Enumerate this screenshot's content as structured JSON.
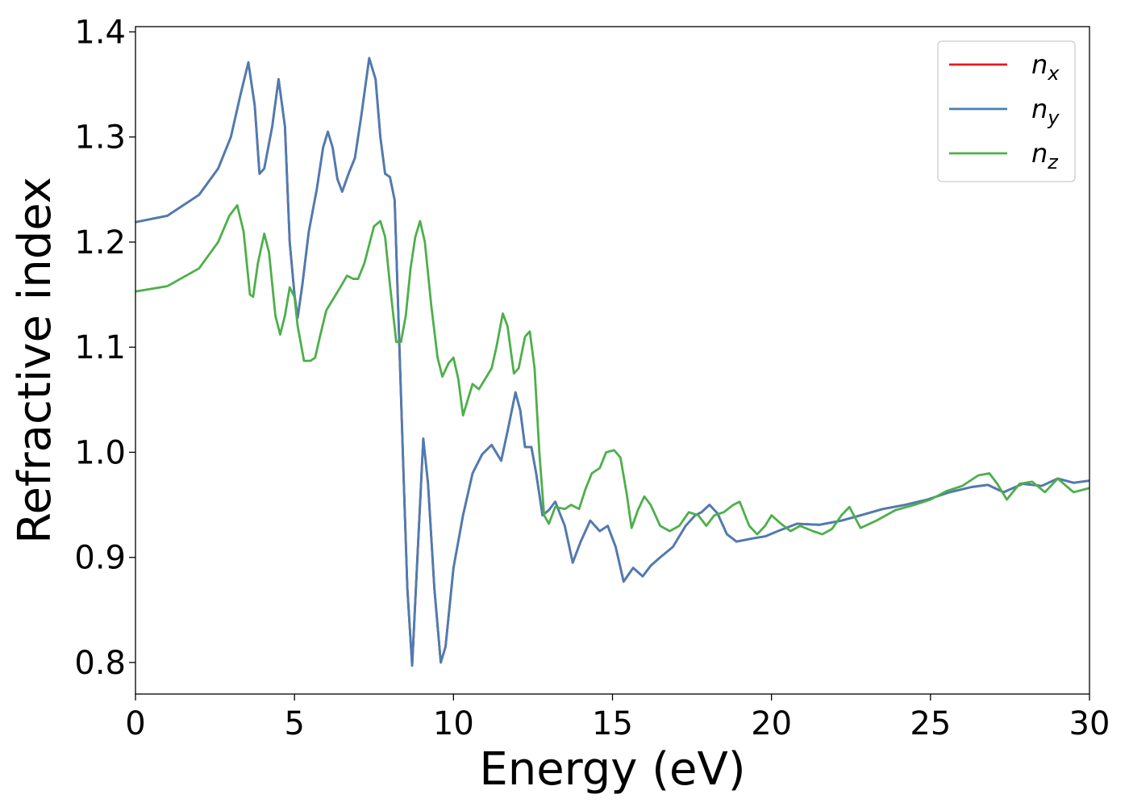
{
  "chart_data": {
    "type": "line",
    "title": "",
    "xlabel": "Energy (eV)",
    "ylabel": "Refractive index",
    "xlim": [
      0,
      30
    ],
    "ylim": [
      0.77,
      1.405
    ],
    "xticks": [
      0,
      5,
      10,
      15,
      20,
      25,
      30
    ],
    "xtick_labels": [
      "0",
      "5",
      "10",
      "15",
      "20",
      "25",
      "30"
    ],
    "yticks": [
      0.8,
      0.9,
      1.0,
      1.1,
      1.2,
      1.3,
      1.4
    ],
    "ytick_labels": [
      "0.8",
      "0.9",
      "1.0",
      "1.1",
      "1.2",
      "1.3",
      "1.4"
    ],
    "grid": false,
    "legend_position": "top-right",
    "series": [
      {
        "name": "n_x",
        "label_base": "n",
        "label_sub": "x",
        "color": "#e41a1c",
        "points": [
          [
            0,
            1.219
          ],
          [
            1,
            1.225
          ],
          [
            2,
            1.245
          ],
          [
            2.6,
            1.27
          ],
          [
            3,
            1.3
          ],
          [
            3.3,
            1.34
          ],
          [
            3.55,
            1.371
          ],
          [
            3.75,
            1.33
          ],
          [
            3.9,
            1.265
          ],
          [
            4.05,
            1.27
          ],
          [
            4.3,
            1.31
          ],
          [
            4.5,
            1.355
          ],
          [
            4.7,
            1.31
          ],
          [
            4.85,
            1.2
          ],
          [
            5.0,
            1.15
          ],
          [
            5.1,
            1.128
          ],
          [
            5.25,
            1.16
          ],
          [
            5.45,
            1.21
          ],
          [
            5.7,
            1.25
          ],
          [
            5.9,
            1.29
          ],
          [
            6.05,
            1.305
          ],
          [
            6.2,
            1.29
          ],
          [
            6.35,
            1.26
          ],
          [
            6.5,
            1.248
          ],
          [
            6.7,
            1.265
          ],
          [
            6.9,
            1.28
          ],
          [
            7.1,
            1.32
          ],
          [
            7.35,
            1.375
          ],
          [
            7.55,
            1.355
          ],
          [
            7.7,
            1.3
          ],
          [
            7.85,
            1.265
          ],
          [
            8.0,
            1.262
          ],
          [
            8.15,
            1.24
          ],
          [
            8.3,
            1.1
          ],
          [
            8.45,
            0.96
          ],
          [
            8.55,
            0.87
          ],
          [
            8.7,
            0.797
          ],
          [
            8.85,
            0.89
          ],
          [
            9.05,
            1.013
          ],
          [
            9.2,
            0.97
          ],
          [
            9.4,
            0.87
          ],
          [
            9.6,
            0.8
          ],
          [
            9.75,
            0.815
          ],
          [
            10.0,
            0.89
          ],
          [
            10.3,
            0.94
          ],
          [
            10.6,
            0.98
          ],
          [
            10.9,
            0.998
          ],
          [
            11.2,
            1.007
          ],
          [
            11.5,
            0.992
          ],
          [
            11.7,
            1.02
          ],
          [
            11.95,
            1.057
          ],
          [
            12.1,
            1.04
          ],
          [
            12.25,
            1.005
          ],
          [
            12.45,
            1.005
          ],
          [
            12.6,
            0.98
          ],
          [
            12.8,
            0.94
          ],
          [
            13.0,
            0.945
          ],
          [
            13.2,
            0.953
          ],
          [
            13.5,
            0.93
          ],
          [
            13.75,
            0.895
          ],
          [
            14.0,
            0.915
          ],
          [
            14.3,
            0.935
          ],
          [
            14.6,
            0.925
          ],
          [
            14.85,
            0.93
          ],
          [
            15.1,
            0.91
          ],
          [
            15.35,
            0.877
          ],
          [
            15.65,
            0.89
          ],
          [
            15.95,
            0.882
          ],
          [
            16.2,
            0.892
          ],
          [
            16.5,
            0.9
          ],
          [
            16.9,
            0.91
          ],
          [
            17.3,
            0.93
          ],
          [
            17.6,
            0.94
          ],
          [
            17.8,
            0.943
          ],
          [
            18.05,
            0.95
          ],
          [
            18.3,
            0.942
          ],
          [
            18.6,
            0.922
          ],
          [
            18.9,
            0.915
          ],
          [
            19.4,
            0.918
          ],
          [
            19.8,
            0.92
          ],
          [
            20.2,
            0.925
          ],
          [
            20.8,
            0.932
          ],
          [
            21.5,
            0.931
          ],
          [
            22.2,
            0.935
          ],
          [
            22.8,
            0.94
          ],
          [
            23.5,
            0.946
          ],
          [
            24.2,
            0.95
          ],
          [
            24.9,
            0.955
          ],
          [
            25.6,
            0.962
          ],
          [
            26.3,
            0.967
          ],
          [
            26.8,
            0.969
          ],
          [
            27.3,
            0.962
          ],
          [
            27.9,
            0.97
          ],
          [
            28.5,
            0.968
          ],
          [
            29.0,
            0.975
          ],
          [
            29.5,
            0.971
          ],
          [
            30,
            0.973
          ]
        ]
      },
      {
        "name": "n_y",
        "label_base": "n",
        "label_sub": "y",
        "color": "#4a7db4",
        "points": [
          [
            0,
            1.219
          ],
          [
            1,
            1.225
          ],
          [
            2,
            1.245
          ],
          [
            2.6,
            1.27
          ],
          [
            3,
            1.3
          ],
          [
            3.3,
            1.34
          ],
          [
            3.55,
            1.371
          ],
          [
            3.75,
            1.33
          ],
          [
            3.9,
            1.265
          ],
          [
            4.05,
            1.27
          ],
          [
            4.3,
            1.31
          ],
          [
            4.5,
            1.355
          ],
          [
            4.7,
            1.31
          ],
          [
            4.85,
            1.2
          ],
          [
            5.0,
            1.15
          ],
          [
            5.1,
            1.128
          ],
          [
            5.25,
            1.16
          ],
          [
            5.45,
            1.21
          ],
          [
            5.7,
            1.25
          ],
          [
            5.9,
            1.29
          ],
          [
            6.05,
            1.305
          ],
          [
            6.2,
            1.29
          ],
          [
            6.35,
            1.26
          ],
          [
            6.5,
            1.248
          ],
          [
            6.7,
            1.265
          ],
          [
            6.9,
            1.28
          ],
          [
            7.1,
            1.32
          ],
          [
            7.35,
            1.375
          ],
          [
            7.55,
            1.355
          ],
          [
            7.7,
            1.3
          ],
          [
            7.85,
            1.265
          ],
          [
            8.0,
            1.262
          ],
          [
            8.15,
            1.24
          ],
          [
            8.3,
            1.1
          ],
          [
            8.45,
            0.96
          ],
          [
            8.55,
            0.87
          ],
          [
            8.7,
            0.797
          ],
          [
            8.85,
            0.89
          ],
          [
            9.05,
            1.013
          ],
          [
            9.2,
            0.97
          ],
          [
            9.4,
            0.87
          ],
          [
            9.6,
            0.8
          ],
          [
            9.75,
            0.815
          ],
          [
            10.0,
            0.89
          ],
          [
            10.3,
            0.94
          ],
          [
            10.6,
            0.98
          ],
          [
            10.9,
            0.998
          ],
          [
            11.2,
            1.007
          ],
          [
            11.5,
            0.992
          ],
          [
            11.7,
            1.02
          ],
          [
            11.95,
            1.057
          ],
          [
            12.1,
            1.04
          ],
          [
            12.25,
            1.005
          ],
          [
            12.45,
            1.005
          ],
          [
            12.6,
            0.98
          ],
          [
            12.8,
            0.94
          ],
          [
            13.0,
            0.945
          ],
          [
            13.2,
            0.953
          ],
          [
            13.5,
            0.93
          ],
          [
            13.75,
            0.895
          ],
          [
            14.0,
            0.915
          ],
          [
            14.3,
            0.935
          ],
          [
            14.6,
            0.925
          ],
          [
            14.85,
            0.93
          ],
          [
            15.1,
            0.91
          ],
          [
            15.35,
            0.877
          ],
          [
            15.65,
            0.89
          ],
          [
            15.95,
            0.882
          ],
          [
            16.2,
            0.892
          ],
          [
            16.5,
            0.9
          ],
          [
            16.9,
            0.91
          ],
          [
            17.3,
            0.93
          ],
          [
            17.6,
            0.94
          ],
          [
            17.8,
            0.943
          ],
          [
            18.05,
            0.95
          ],
          [
            18.3,
            0.942
          ],
          [
            18.6,
            0.922
          ],
          [
            18.9,
            0.915
          ],
          [
            19.4,
            0.918
          ],
          [
            19.8,
            0.92
          ],
          [
            20.2,
            0.925
          ],
          [
            20.8,
            0.932
          ],
          [
            21.5,
            0.931
          ],
          [
            22.2,
            0.935
          ],
          [
            22.8,
            0.94
          ],
          [
            23.5,
            0.946
          ],
          [
            24.2,
            0.95
          ],
          [
            24.9,
            0.955
          ],
          [
            25.6,
            0.962
          ],
          [
            26.3,
            0.967
          ],
          [
            26.8,
            0.969
          ],
          [
            27.3,
            0.962
          ],
          [
            27.9,
            0.97
          ],
          [
            28.5,
            0.968
          ],
          [
            29.0,
            0.975
          ],
          [
            29.5,
            0.971
          ],
          [
            30,
            0.973
          ]
        ]
      },
      {
        "name": "n_z",
        "label_base": "n",
        "label_sub": "z",
        "color": "#4daf4a",
        "points": [
          [
            0,
            1.153
          ],
          [
            1,
            1.158
          ],
          [
            2,
            1.175
          ],
          [
            2.6,
            1.2
          ],
          [
            2.95,
            1.225
          ],
          [
            3.2,
            1.235
          ],
          [
            3.4,
            1.21
          ],
          [
            3.6,
            1.15
          ],
          [
            3.7,
            1.148
          ],
          [
            3.85,
            1.18
          ],
          [
            4.05,
            1.208
          ],
          [
            4.2,
            1.19
          ],
          [
            4.4,
            1.13
          ],
          [
            4.55,
            1.112
          ],
          [
            4.7,
            1.13
          ],
          [
            4.85,
            1.157
          ],
          [
            5.0,
            1.148
          ],
          [
            5.1,
            1.12
          ],
          [
            5.3,
            1.087
          ],
          [
            5.5,
            1.087
          ],
          [
            5.65,
            1.09
          ],
          [
            5.8,
            1.11
          ],
          [
            6.0,
            1.135
          ],
          [
            6.3,
            1.15
          ],
          [
            6.5,
            1.16
          ],
          [
            6.65,
            1.168
          ],
          [
            6.85,
            1.165
          ],
          [
            7.0,
            1.165
          ],
          [
            7.2,
            1.18
          ],
          [
            7.5,
            1.215
          ],
          [
            7.7,
            1.22
          ],
          [
            7.85,
            1.205
          ],
          [
            8.0,
            1.16
          ],
          [
            8.2,
            1.105
          ],
          [
            8.35,
            1.105
          ],
          [
            8.5,
            1.13
          ],
          [
            8.65,
            1.175
          ],
          [
            8.8,
            1.205
          ],
          [
            8.95,
            1.22
          ],
          [
            9.1,
            1.2
          ],
          [
            9.3,
            1.14
          ],
          [
            9.5,
            1.09
          ],
          [
            9.65,
            1.072
          ],
          [
            9.85,
            1.085
          ],
          [
            10.0,
            1.09
          ],
          [
            10.15,
            1.07
          ],
          [
            10.3,
            1.035
          ],
          [
            10.45,
            1.05
          ],
          [
            10.6,
            1.065
          ],
          [
            10.8,
            1.06
          ],
          [
            11.0,
            1.07
          ],
          [
            11.2,
            1.08
          ],
          [
            11.35,
            1.1
          ],
          [
            11.55,
            1.132
          ],
          [
            11.7,
            1.12
          ],
          [
            11.9,
            1.075
          ],
          [
            12.05,
            1.08
          ],
          [
            12.25,
            1.11
          ],
          [
            12.4,
            1.115
          ],
          [
            12.55,
            1.08
          ],
          [
            12.7,
            1.0
          ],
          [
            12.85,
            0.94
          ],
          [
            13.0,
            0.932
          ],
          [
            13.2,
            0.948
          ],
          [
            13.5,
            0.946
          ],
          [
            13.7,
            0.95
          ],
          [
            13.95,
            0.946
          ],
          [
            14.15,
            0.965
          ],
          [
            14.35,
            0.98
          ],
          [
            14.6,
            0.985
          ],
          [
            14.8,
            1.0
          ],
          [
            15.05,
            1.002
          ],
          [
            15.25,
            0.995
          ],
          [
            15.45,
            0.96
          ],
          [
            15.6,
            0.928
          ],
          [
            15.8,
            0.945
          ],
          [
            16.0,
            0.958
          ],
          [
            16.2,
            0.95
          ],
          [
            16.5,
            0.93
          ],
          [
            16.8,
            0.925
          ],
          [
            17.1,
            0.93
          ],
          [
            17.4,
            0.943
          ],
          [
            17.7,
            0.94
          ],
          [
            17.95,
            0.93
          ],
          [
            18.2,
            0.94
          ],
          [
            18.5,
            0.943
          ],
          [
            18.8,
            0.95
          ],
          [
            19.0,
            0.953
          ],
          [
            19.3,
            0.93
          ],
          [
            19.55,
            0.922
          ],
          [
            19.8,
            0.93
          ],
          [
            20.0,
            0.94
          ],
          [
            20.3,
            0.932
          ],
          [
            20.6,
            0.925
          ],
          [
            20.9,
            0.93
          ],
          [
            21.3,
            0.925
          ],
          [
            21.6,
            0.922
          ],
          [
            21.9,
            0.927
          ],
          [
            22.2,
            0.94
          ],
          [
            22.45,
            0.948
          ],
          [
            22.8,
            0.928
          ],
          [
            23.3,
            0.935
          ],
          [
            23.9,
            0.945
          ],
          [
            24.5,
            0.95
          ],
          [
            25.0,
            0.955
          ],
          [
            25.5,
            0.963
          ],
          [
            26.0,
            0.968
          ],
          [
            26.5,
            0.978
          ],
          [
            26.85,
            0.98
          ],
          [
            27.1,
            0.97
          ],
          [
            27.4,
            0.955
          ],
          [
            27.8,
            0.97
          ],
          [
            28.2,
            0.972
          ],
          [
            28.6,
            0.962
          ],
          [
            29.0,
            0.975
          ],
          [
            29.5,
            0.962
          ],
          [
            30,
            0.966
          ]
        ]
      }
    ]
  }
}
